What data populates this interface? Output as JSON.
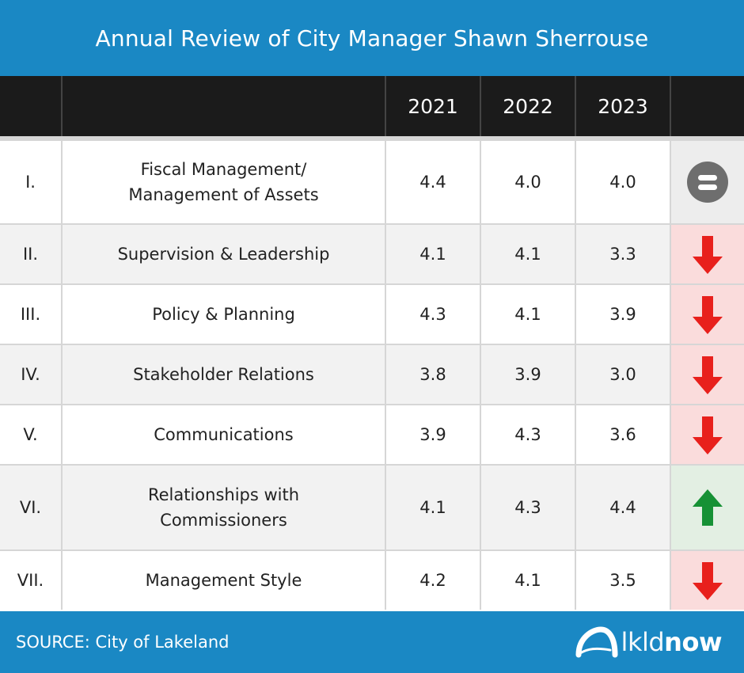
{
  "title": "Annual Review of City Manager Shawn Sherrouse",
  "chart_data": {
    "type": "table",
    "title": "Annual Review of City Manager Shawn Sherrouse",
    "columns": [
      "",
      "",
      "2021",
      "2022",
      "2023",
      ""
    ],
    "rows": [
      {
        "num": "I.",
        "category": "Fiscal Management/\nManagement of Assets",
        "values": [
          "4.4",
          "4.0",
          "4.0"
        ],
        "trend": "flat"
      },
      {
        "num": "II.",
        "category": "Supervision & Leadership",
        "values": [
          "4.1",
          "4.1",
          "3.3"
        ],
        "trend": "down"
      },
      {
        "num": "III.",
        "category": "Policy & Planning",
        "values": [
          "4.3",
          "4.1",
          "3.9"
        ],
        "trend": "down"
      },
      {
        "num": "IV.",
        "category": "Stakeholder Relations",
        "values": [
          "3.8",
          "3.9",
          "3.0"
        ],
        "trend": "down"
      },
      {
        "num": "V.",
        "category": "Communications",
        "values": [
          "3.9",
          "4.3",
          "3.6"
        ],
        "trend": "down"
      },
      {
        "num": "VI.",
        "category": "Relationships with\nCommissioners",
        "values": [
          "4.1",
          "4.3",
          "4.4"
        ],
        "trend": "up"
      },
      {
        "num": "VII.",
        "category": "Management Style",
        "values": [
          "4.2",
          "4.1",
          "3.5"
        ],
        "trend": "down"
      }
    ]
  },
  "footer": {
    "source": "SOURCE: City of Lakeland",
    "logo_light": "lkld",
    "logo_bold": "now"
  },
  "colors": {
    "brand_blue": "#1a88c4",
    "down_red": "#e8201c",
    "up_green": "#169135",
    "flat_gray": "#6e6e6e"
  }
}
